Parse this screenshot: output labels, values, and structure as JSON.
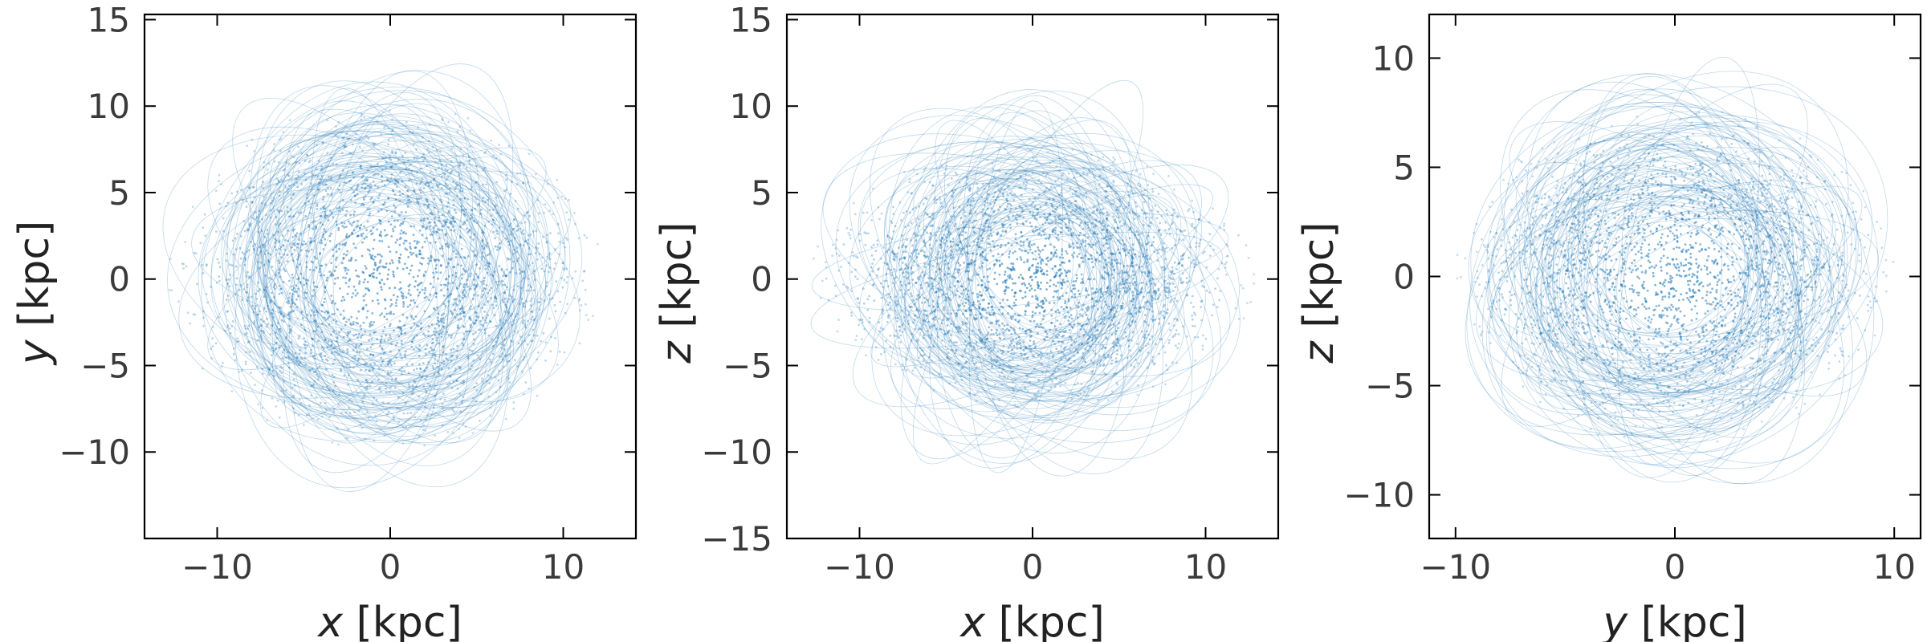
{
  "chart_data": [
    {
      "type": "scatter",
      "xlabel_var": "x",
      "xlabel_unit": " [kpc]",
      "ylabel_var": "y",
      "ylabel_unit": " [kpc]",
      "xlim": [
        -14.2,
        14.2
      ],
      "ylim": [
        -15.0,
        15.3
      ],
      "xticks": [
        {
          "v": -10,
          "label": "−10"
        },
        {
          "v": 0,
          "label": "0"
        },
        {
          "v": 10,
          "label": "10"
        }
      ],
      "yticks": [
        {
          "v": -10,
          "label": "−10"
        },
        {
          "v": -5,
          "label": "−5"
        },
        {
          "v": 0,
          "label": "0"
        },
        {
          "v": 5,
          "label": "5"
        },
        {
          "v": 10,
          "label": "10"
        },
        {
          "v": 15,
          "label": "15"
        }
      ],
      "distribution": {
        "center": [
          -0.3,
          0.2
        ],
        "semi_axes": [
          12.5,
          10.0
        ]
      }
    },
    {
      "type": "scatter",
      "xlabel_var": "x",
      "xlabel_unit": " [kpc]",
      "ylabel_var": "z",
      "ylabel_unit": " [kpc]",
      "xlim": [
        -14.2,
        14.2
      ],
      "ylim": [
        -15.0,
        15.3
      ],
      "xticks": [
        {
          "v": -10,
          "label": "−10"
        },
        {
          "v": 0,
          "label": "0"
        },
        {
          "v": 10,
          "label": "10"
        }
      ],
      "yticks": [
        {
          "v": -15,
          "label": "−15"
        },
        {
          "v": -10,
          "label": "−10"
        },
        {
          "v": -5,
          "label": "−5"
        },
        {
          "v": 0,
          "label": "0"
        },
        {
          "v": 5,
          "label": "5"
        },
        {
          "v": 10,
          "label": "10"
        },
        {
          "v": 15,
          "label": "15"
        }
      ],
      "distribution": {
        "center": [
          0.0,
          0.0
        ],
        "semi_axes": [
          12.8,
          7.6
        ]
      }
    },
    {
      "type": "scatter",
      "xlabel_var": "y",
      "xlabel_unit": " [kpc]",
      "ylabel_var": "z",
      "ylabel_unit": " [kpc]",
      "xlim": [
        -11.2,
        11.2
      ],
      "ylim": [
        -12.0,
        12.0
      ],
      "xticks": [
        {
          "v": -10,
          "label": "−10"
        },
        {
          "v": 0,
          "label": "0"
        },
        {
          "v": 10,
          "label": "10"
        }
      ],
      "yticks": [
        {
          "v": -10,
          "label": "−10"
        },
        {
          "v": -5,
          "label": "−5"
        },
        {
          "v": 0,
          "label": "0"
        },
        {
          "v": 5,
          "label": "5"
        },
        {
          "v": 10,
          "label": "10"
        }
      ],
      "distribution": {
        "center": [
          0.0,
          0.0
        ],
        "semi_axes": [
          10.0,
          7.7
        ]
      }
    }
  ],
  "colors": {
    "points": "#1f77b4",
    "axes": "#000000",
    "text": "#3a3a3a"
  }
}
